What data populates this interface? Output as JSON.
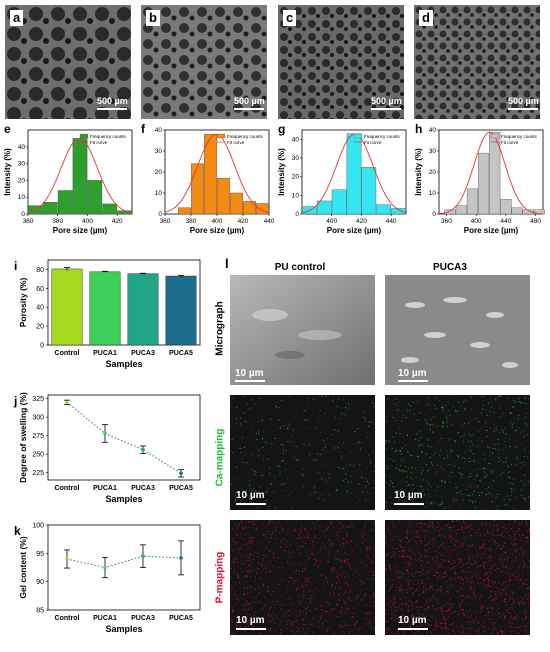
{
  "panels_top": [
    {
      "letter": "a",
      "scale": "500 µm"
    },
    {
      "letter": "b",
      "scale": "500 µm"
    },
    {
      "letter": "c",
      "scale": "500 µm"
    },
    {
      "letter": "d",
      "scale": "500 µm"
    }
  ],
  "pore_charts": [
    {
      "letter": "e",
      "ylabel": "Intensity (%)",
      "xlabel": "Pore size (µm)",
      "color": "#2e9e2e",
      "legend": [
        "Frequency counts",
        "Fit curve"
      ],
      "x": [
        365,
        375,
        385,
        395,
        405,
        415,
        425
      ],
      "values": [
        5,
        7,
        14,
        45,
        20,
        6,
        2
      ],
      "xticks": [
        360,
        380,
        400,
        420
      ],
      "xlim": [
        360,
        430
      ],
      "ylim": [
        0,
        50
      ],
      "yticks": [
        0,
        10,
        20,
        30,
        40
      ]
    },
    {
      "letter": "f",
      "ylabel": "",
      "xlabel": "Pore size (µm)",
      "color": "#f28a14",
      "legend": [
        "Frequency counts",
        "Fit curve"
      ],
      "x": [
        375,
        385,
        395,
        405,
        415,
        425,
        435
      ],
      "values": [
        3,
        24,
        38,
        17,
        10,
        6,
        5
      ],
      "xticks": [
        360,
        380,
        400,
        420,
        440
      ],
      "xlim": [
        360,
        440
      ],
      "ylim": [
        0,
        40
      ],
      "yticks": [
        0,
        10,
        20,
        30,
        40
      ]
    },
    {
      "letter": "g",
      "ylabel": "Intensity (%)",
      "xlabel": "Pore size (µm)",
      "color": "#35e6f0",
      "legend": [
        "Frequency counts",
        "Fit curve"
      ],
      "x": [
        385,
        395,
        405,
        415,
        425,
        435,
        445
      ],
      "values": [
        4,
        7,
        13,
        43,
        25,
        5,
        3
      ],
      "xticks": [
        400,
        420,
        440
      ],
      "xlim": [
        380,
        450
      ],
      "ylim": [
        0,
        45
      ],
      "yticks": [
        0,
        10,
        20,
        30,
        40
      ]
    },
    {
      "letter": "h",
      "ylabel": "Intensity (%)",
      "xlabel": "Pore size (µm)",
      "color": "#c4c4c4",
      "legend": [
        "Frequency counts",
        "Fit curve"
      ],
      "x": [
        365,
        380,
        395,
        410,
        425,
        440,
        455,
        470,
        485
      ],
      "values": [
        2,
        4,
        12,
        29,
        39,
        7,
        3,
        2,
        2
      ],
      "xticks": [
        360,
        400,
        440,
        480
      ],
      "xlim": [
        350,
        490
      ],
      "ylim": [
        0,
        40
      ],
      "yticks": [
        0,
        10,
        20,
        30,
        40
      ]
    }
  ],
  "porosity": {
    "letter": "i",
    "ylabel": "Porosity (%)",
    "xlabel": "Samples",
    "categories": [
      "Control",
      "PUCA1",
      "PUCA3",
      "PUCA5"
    ],
    "values": [
      80.5,
      77.5,
      75.5,
      73.0
    ],
    "errors": [
      1.5,
      0.5,
      0.5,
      0.8
    ],
    "colors": [
      "#a6d820",
      "#3ecf58",
      "#21a589",
      "#1c6d8e"
    ],
    "ylim": [
      0,
      90
    ],
    "yticks": [
      0,
      20,
      40,
      60,
      80
    ]
  },
  "swelling": {
    "letter": "j",
    "ylabel": "Degree of swelling (%)",
    "xlabel": "Samples",
    "categories": [
      "Control",
      "PUCA1",
      "PUCA3",
      "PUCA5"
    ],
    "values": [
      320,
      278,
      256,
      224
    ],
    "errors": [
      3,
      12,
      5,
      5
    ],
    "colors": [
      "#a6d820",
      "#3ecf58",
      "#21a589",
      "#1c6d8e"
    ],
    "ylim": [
      215,
      330
    ],
    "yticks": [
      225,
      250,
      275,
      300,
      325
    ]
  },
  "gel": {
    "letter": "k",
    "ylabel": "Gel content (%)",
    "xlabel": "Samples",
    "categories": [
      "Control",
      "PUCA1",
      "PUCA3",
      "PUCA5"
    ],
    "values": [
      94.0,
      92.5,
      94.5,
      94.2
    ],
    "errors": [
      1.6,
      1.8,
      2.0,
      3.0
    ],
    "colors": [
      "#a6d820",
      "#3ecf58",
      "#21a589",
      "#1c6d8e"
    ],
    "ylim": [
      85,
      100
    ],
    "yticks": [
      85,
      90,
      95,
      100
    ]
  },
  "panel_l": {
    "letter": "l",
    "col1": "PU control",
    "col2": "PUCA3",
    "row1": "Micrograph",
    "row2": "Ca-mapping",
    "row3": "P-mapping",
    "scale": "10 µm",
    "ca_color": "#15c03a",
    "p_color": "#e0103c"
  }
}
